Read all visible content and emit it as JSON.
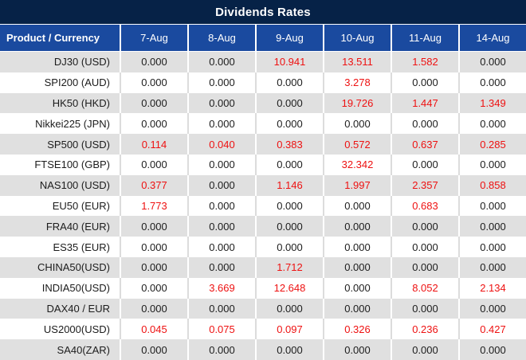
{
  "title": "Dividends Rates",
  "colors": {
    "title_bar_bg": "#062247",
    "header_bg": "#1a4a9f",
    "row_alt_bg": "#e0e0e0",
    "row_bg": "#ffffff",
    "highlight_text": "#ee1111",
    "normal_text": "#1c1c1c",
    "header_text": "#ffffff"
  },
  "chart_data": {
    "type": "table",
    "title": "Dividends Rates",
    "columns": [
      "Product / Currency",
      "7-Aug",
      "8-Aug",
      "9-Aug",
      "10-Aug",
      "11-Aug",
      "14-Aug"
    ],
    "rows": [
      {
        "product": "DJ30 (USD)",
        "values": [
          "0.000",
          "0.000",
          "10.941",
          "13.511",
          "1.582",
          "0.000"
        ],
        "red": [
          false,
          false,
          true,
          true,
          true,
          false
        ]
      },
      {
        "product": "SPI200 (AUD)",
        "values": [
          "0.000",
          "0.000",
          "0.000",
          "3.278",
          "0.000",
          "0.000"
        ],
        "red": [
          false,
          false,
          false,
          true,
          false,
          false
        ]
      },
      {
        "product": "HK50 (HKD)",
        "values": [
          "0.000",
          "0.000",
          "0.000",
          "19.726",
          "1.447",
          "1.349"
        ],
        "red": [
          false,
          false,
          false,
          true,
          true,
          true
        ]
      },
      {
        "product": "Nikkei225 (JPN)",
        "values": [
          "0.000",
          "0.000",
          "0.000",
          "0.000",
          "0.000",
          "0.000"
        ],
        "red": [
          false,
          false,
          false,
          false,
          false,
          false
        ]
      },
      {
        "product": "SP500 (USD)",
        "values": [
          "0.114",
          "0.040",
          "0.383",
          "0.572",
          "0.637",
          "0.285"
        ],
        "red": [
          true,
          true,
          true,
          true,
          true,
          true
        ]
      },
      {
        "product": "FTSE100 (GBP)",
        "values": [
          "0.000",
          "0.000",
          "0.000",
          "32.342",
          "0.000",
          "0.000"
        ],
        "red": [
          false,
          false,
          false,
          true,
          false,
          false
        ]
      },
      {
        "product": "NAS100 (USD)",
        "values": [
          "0.377",
          "0.000",
          "1.146",
          "1.997",
          "2.357",
          "0.858"
        ],
        "red": [
          true,
          false,
          true,
          true,
          true,
          true
        ]
      },
      {
        "product": "EU50 (EUR)",
        "values": [
          "1.773",
          "0.000",
          "0.000",
          "0.000",
          "0.683",
          "0.000"
        ],
        "red": [
          true,
          false,
          false,
          false,
          true,
          false
        ]
      },
      {
        "product": "FRA40 (EUR)",
        "values": [
          "0.000",
          "0.000",
          "0.000",
          "0.000",
          "0.000",
          "0.000"
        ],
        "red": [
          false,
          false,
          false,
          false,
          false,
          false
        ]
      },
      {
        "product": "ES35 (EUR)",
        "values": [
          "0.000",
          "0.000",
          "0.000",
          "0.000",
          "0.000",
          "0.000"
        ],
        "red": [
          false,
          false,
          false,
          false,
          false,
          false
        ]
      },
      {
        "product": "CHINA50(USD)",
        "values": [
          "0.000",
          "0.000",
          "1.712",
          "0.000",
          "0.000",
          "0.000"
        ],
        "red": [
          false,
          false,
          true,
          false,
          false,
          false
        ]
      },
      {
        "product": "INDIA50(USD)",
        "values": [
          "0.000",
          "3.669",
          "12.648",
          "0.000",
          "8.052",
          "2.134"
        ],
        "red": [
          false,
          true,
          true,
          false,
          true,
          true
        ]
      },
      {
        "product": "DAX40 / EUR",
        "values": [
          "0.000",
          "0.000",
          "0.000",
          "0.000",
          "0.000",
          "0.000"
        ],
        "red": [
          false,
          false,
          false,
          false,
          false,
          false
        ]
      },
      {
        "product": "US2000(USD)",
        "values": [
          "0.045",
          "0.075",
          "0.097",
          "0.326",
          "0.236",
          "0.427"
        ],
        "red": [
          true,
          true,
          true,
          true,
          true,
          true
        ]
      },
      {
        "product": "SA40(ZAR)",
        "values": [
          "0.000",
          "0.000",
          "0.000",
          "0.000",
          "0.000",
          "0.000"
        ],
        "red": [
          false,
          false,
          false,
          false,
          false,
          false
        ]
      }
    ]
  }
}
